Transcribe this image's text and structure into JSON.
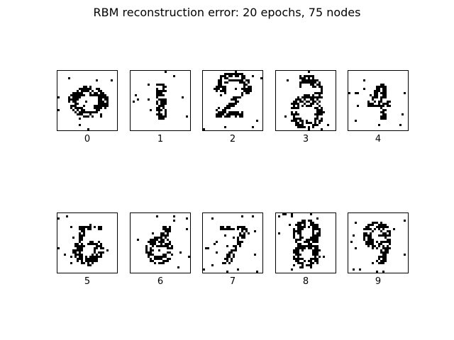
{
  "figure": {
    "title": "RBM reconstruction error: 20 epochs, 75 nodes"
  },
  "grid": {
    "rows": 2,
    "columns": 5,
    "image_size": 28
  },
  "panels": [
    {
      "label": "0",
      "rows": 2,
      "columns": 0
    },
    {
      "label": "1"
    },
    {
      "label": "2"
    },
    {
      "label": "3"
    },
    {
      "label": "4"
    },
    {
      "label": "5"
    },
    {
      "label": "6"
    },
    {
      "label": "7"
    },
    {
      "label": "8"
    },
    {
      "label": "9"
    }
  ],
  "colors": {
    "pixel_on": "#000000",
    "background": "#ffffff",
    "border": "#000000"
  }
}
